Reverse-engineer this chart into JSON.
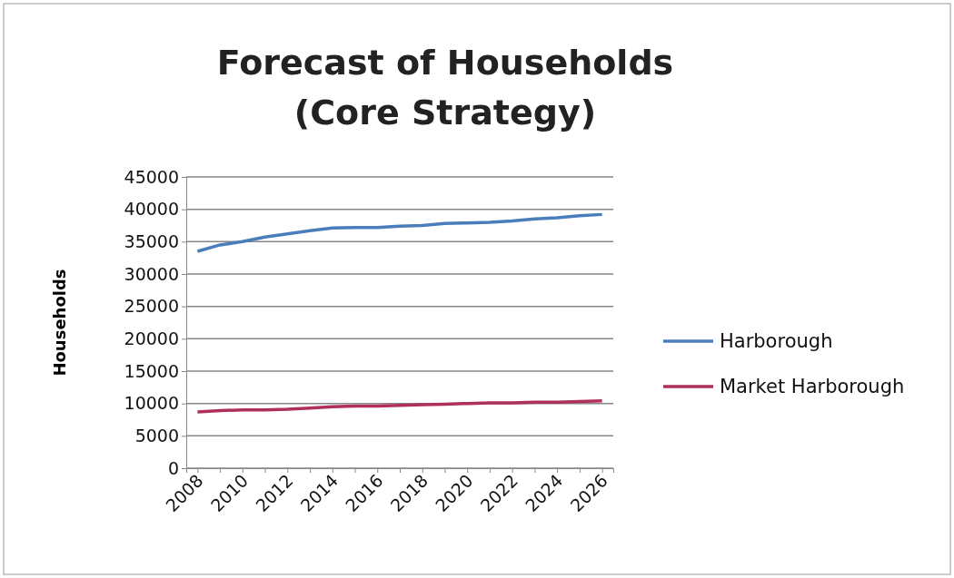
{
  "chart_data": {
    "type": "line",
    "title": "Forecast of Households\n(Core Strategy)",
    "ylabel": "Households",
    "categories": [
      "2008",
      null,
      "2010",
      null,
      "2012",
      null,
      "2014",
      null,
      "2016",
      null,
      "2018",
      null,
      "2020",
      null,
      "2022",
      null,
      "2024",
      null,
      "2026"
    ],
    "series": [
      {
        "name": "Harborough",
        "color": "#4a7ebb",
        "values": [
          33500,
          34500,
          35000,
          35700,
          36200,
          36700,
          37100,
          37200,
          37200,
          37400,
          37500,
          37800,
          37900,
          38000,
          38200,
          38500,
          38700,
          39000,
          39200
        ]
      },
      {
        "name": "Market Harborough",
        "color": "#b0305a",
        "values": [
          8700,
          8900,
          9000,
          9000,
          9100,
          9300,
          9500,
          9600,
          9600,
          9700,
          9800,
          9900,
          10000,
          10100,
          10100,
          10200,
          10200,
          10300,
          10400
        ]
      }
    ],
    "ylim": [
      0,
      45000
    ],
    "yticks": [
      0,
      5000,
      10000,
      15000,
      20000,
      25000,
      30000,
      35000,
      40000,
      45000
    ],
    "grid": "y",
    "legend": "right",
    "marker": "none",
    "line_style": "solid"
  }
}
